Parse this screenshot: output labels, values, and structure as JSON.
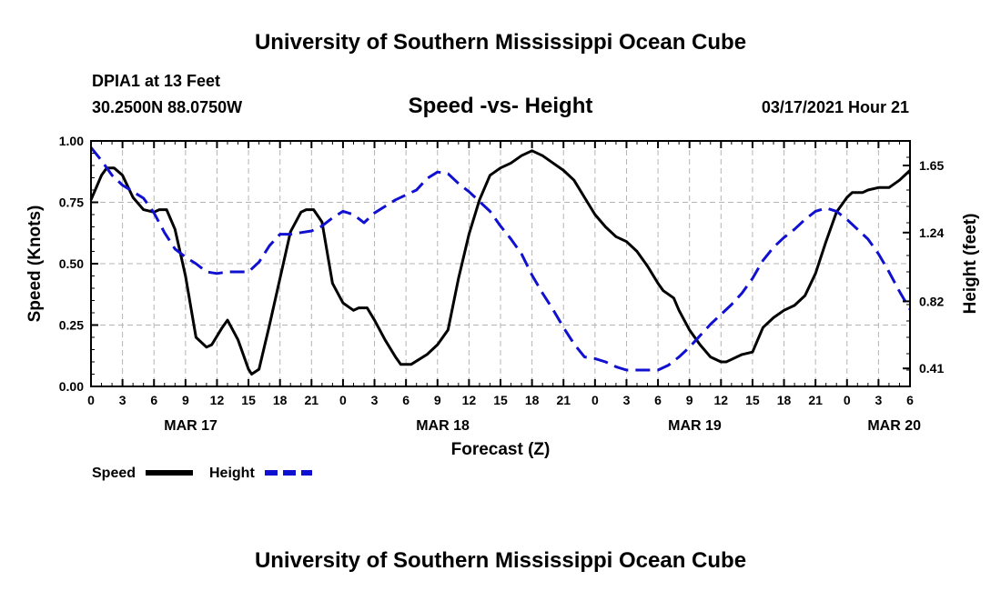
{
  "header": {
    "title": "University of Southern Mississippi Ocean Cube",
    "footer_title": "University of Southern Mississippi Ocean Cube",
    "station": "DPIA1 at 13 Feet",
    "location": "30.2500N 88.0750W",
    "chart_title": "Speed -vs- Height",
    "timestamp": "03/17/2021 Hour 21"
  },
  "colors": {
    "speed": "#000000",
    "height": "#1010d0",
    "grid": "#b4b4b4",
    "frame": "#000000"
  },
  "chart_data": {
    "type": "line",
    "title": "Speed -vs- Height",
    "xlabel": "Forecast (Z)",
    "ylabel": "Speed (Knots)",
    "y2label": "Height (feet)",
    "x_unit": "hours from MAR 17 00Z",
    "xlim": [
      0,
      78
    ],
    "ylim": [
      0,
      1
    ],
    "y2lim": [
      0.3,
      1.8
    ],
    "x_ticks": [
      0,
      3,
      6,
      9,
      12,
      15,
      18,
      21,
      24,
      27,
      30,
      33,
      36,
      39,
      42,
      45,
      48,
      51,
      54,
      57,
      60,
      63,
      66,
      69,
      72,
      75,
      78
    ],
    "x_tick_labels": [
      "0",
      "3",
      "6",
      "9",
      "12",
      "15",
      "18",
      "21",
      "0",
      "3",
      "6",
      "9",
      "12",
      "15",
      "18",
      "21",
      "0",
      "3",
      "6",
      "9",
      "12",
      "15",
      "18",
      "21",
      "0",
      "3",
      "6"
    ],
    "y_ticks": [
      0,
      0.25,
      0.5,
      0.75,
      1.0
    ],
    "y_tick_labels": [
      "0.00",
      "0.25",
      "0.50",
      "0.75",
      "1.00"
    ],
    "y2_ticks": [
      0.41,
      0.82,
      1.24,
      1.65
    ],
    "y2_tick_labels": [
      "0.41",
      "0.82",
      "1.24",
      "1.65"
    ],
    "date_labels": [
      {
        "x": 9.5,
        "label": "MAR 17"
      },
      {
        "x": 33.5,
        "label": "MAR 18"
      },
      {
        "x": 57.5,
        "label": "MAR 19"
      },
      {
        "x": 76.5,
        "label": "MAR 20"
      }
    ],
    "grid": true,
    "legend_position": "bottom-left",
    "series": [
      {
        "name": "Speed",
        "axis": "left",
        "style": "solid",
        "points": [
          [
            0,
            0.76
          ],
          [
            1,
            0.86
          ],
          [
            1.5,
            0.89
          ],
          [
            2.2,
            0.89
          ],
          [
            3,
            0.86
          ],
          [
            4,
            0.77
          ],
          [
            5,
            0.72
          ],
          [
            6,
            0.71
          ],
          [
            6.5,
            0.72
          ],
          [
            7.2,
            0.72
          ],
          [
            8,
            0.64
          ],
          [
            9,
            0.45
          ],
          [
            10,
            0.2
          ],
          [
            11,
            0.16
          ],
          [
            11.5,
            0.17
          ],
          [
            12.5,
            0.24
          ],
          [
            13,
            0.27
          ],
          [
            14,
            0.19
          ],
          [
            15,
            0.07
          ],
          [
            15.3,
            0.05
          ],
          [
            16,
            0.07
          ],
          [
            17,
            0.25
          ],
          [
            18,
            0.44
          ],
          [
            19,
            0.63
          ],
          [
            20,
            0.71
          ],
          [
            20.5,
            0.72
          ],
          [
            21.2,
            0.72
          ],
          [
            22,
            0.67
          ],
          [
            23,
            0.42
          ],
          [
            24,
            0.34
          ],
          [
            25,
            0.31
          ],
          [
            25.5,
            0.32
          ],
          [
            26.3,
            0.32
          ],
          [
            27,
            0.27
          ],
          [
            28,
            0.19
          ],
          [
            29,
            0.12
          ],
          [
            29.5,
            0.09
          ],
          [
            30.5,
            0.09
          ],
          [
            32,
            0.13
          ],
          [
            33,
            0.17
          ],
          [
            34,
            0.23
          ],
          [
            35,
            0.44
          ],
          [
            36,
            0.62
          ],
          [
            37,
            0.76
          ],
          [
            38,
            0.86
          ],
          [
            39,
            0.89
          ],
          [
            40,
            0.91
          ],
          [
            41,
            0.94
          ],
          [
            42,
            0.96
          ],
          [
            43,
            0.94
          ],
          [
            44,
            0.91
          ],
          [
            45,
            0.88
          ],
          [
            46,
            0.84
          ],
          [
            47,
            0.77
          ],
          [
            48,
            0.7
          ],
          [
            49,
            0.65
          ],
          [
            50,
            0.61
          ],
          [
            51,
            0.59
          ],
          [
            52,
            0.55
          ],
          [
            53,
            0.49
          ],
          [
            54,
            0.42
          ],
          [
            54.5,
            0.39
          ],
          [
            55.5,
            0.36
          ],
          [
            56,
            0.31
          ],
          [
            57,
            0.23
          ],
          [
            58,
            0.17
          ],
          [
            59,
            0.12
          ],
          [
            60,
            0.1
          ],
          [
            60.5,
            0.1
          ],
          [
            61,
            0.11
          ],
          [
            62,
            0.13
          ],
          [
            63,
            0.14
          ],
          [
            64,
            0.24
          ],
          [
            65,
            0.28
          ],
          [
            66,
            0.31
          ],
          [
            67,
            0.33
          ],
          [
            68,
            0.37
          ],
          [
            69,
            0.46
          ],
          [
            70,
            0.59
          ],
          [
            71,
            0.71
          ],
          [
            72,
            0.77
          ],
          [
            72.5,
            0.79
          ],
          [
            73.5,
            0.79
          ],
          [
            74,
            0.8
          ],
          [
            75,
            0.81
          ],
          [
            76,
            0.81
          ],
          [
            77,
            0.84
          ],
          [
            78,
            0.88
          ]
        ]
      },
      {
        "name": "Height",
        "axis": "right",
        "style": "dashed",
        "points": [
          [
            0,
            1.76
          ],
          [
            1,
            1.68
          ],
          [
            2,
            1.59
          ],
          [
            3,
            1.53
          ],
          [
            4,
            1.49
          ],
          [
            5,
            1.45
          ],
          [
            6,
            1.36
          ],
          [
            7,
            1.24
          ],
          [
            8,
            1.14
          ],
          [
            9,
            1.09
          ],
          [
            10,
            1.05
          ],
          [
            11,
            1.0
          ],
          [
            12,
            0.99
          ],
          [
            13,
            1.0
          ],
          [
            14,
            1.0
          ],
          [
            15,
            1.0
          ],
          [
            16,
            1.06
          ],
          [
            17,
            1.16
          ],
          [
            18,
            1.23
          ],
          [
            19,
            1.23
          ],
          [
            20,
            1.24
          ],
          [
            21,
            1.25
          ],
          [
            22,
            1.28
          ],
          [
            23,
            1.33
          ],
          [
            24,
            1.37
          ],
          [
            25,
            1.35
          ],
          [
            26,
            1.3
          ],
          [
            27,
            1.36
          ],
          [
            28,
            1.4
          ],
          [
            29,
            1.44
          ],
          [
            30,
            1.47
          ],
          [
            31,
            1.5
          ],
          [
            32,
            1.57
          ],
          [
            33,
            1.61
          ],
          [
            34,
            1.6
          ],
          [
            35,
            1.54
          ],
          [
            36,
            1.49
          ],
          [
            37,
            1.43
          ],
          [
            38,
            1.37
          ],
          [
            39,
            1.28
          ],
          [
            40,
            1.2
          ],
          [
            41,
            1.11
          ],
          [
            42,
            0.98
          ],
          [
            43,
            0.87
          ],
          [
            44,
            0.77
          ],
          [
            45,
            0.66
          ],
          [
            46,
            0.56
          ],
          [
            47,
            0.48
          ],
          [
            48,
            0.47
          ],
          [
            49,
            0.45
          ],
          [
            50,
            0.42
          ],
          [
            51,
            0.4
          ],
          [
            52,
            0.4
          ],
          [
            53,
            0.4
          ],
          [
            54,
            0.4
          ],
          [
            55,
            0.43
          ],
          [
            56,
            0.48
          ],
          [
            57,
            0.54
          ],
          [
            58,
            0.61
          ],
          [
            59,
            0.68
          ],
          [
            60,
            0.74
          ],
          [
            61,
            0.8
          ],
          [
            62,
            0.87
          ],
          [
            63,
            0.96
          ],
          [
            64,
            1.07
          ],
          [
            65,
            1.15
          ],
          [
            66,
            1.21
          ],
          [
            67,
            1.26
          ],
          [
            68,
            1.32
          ],
          [
            69,
            1.37
          ],
          [
            70,
            1.39
          ],
          [
            71,
            1.37
          ],
          [
            72,
            1.32
          ],
          [
            73,
            1.26
          ],
          [
            74,
            1.2
          ],
          [
            75,
            1.11
          ],
          [
            76,
            1.0
          ],
          [
            77,
            0.88
          ],
          [
            78,
            0.77
          ]
        ]
      }
    ]
  }
}
